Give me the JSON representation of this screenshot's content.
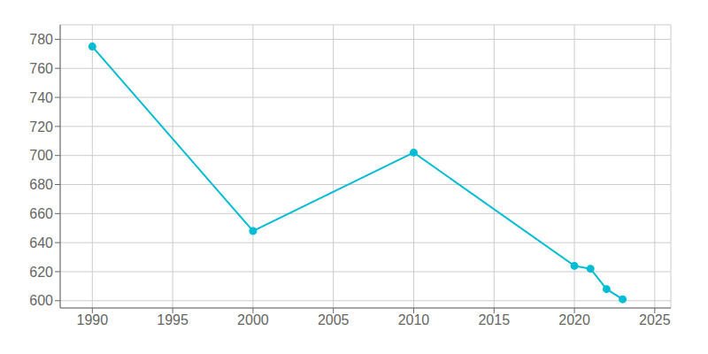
{
  "chart_data": {
    "type": "line",
    "x": [
      1990,
      2000,
      2010,
      2020,
      2021,
      2022,
      2023
    ],
    "values": [
      775,
      648,
      702,
      624,
      622,
      608,
      601
    ],
    "color": "#00BCD4",
    "marker": "circle",
    "xlim": [
      1988,
      2026
    ],
    "ylim": [
      595,
      790
    ],
    "xticks": [
      1990,
      1995,
      2000,
      2005,
      2010,
      2015,
      2020,
      2025
    ],
    "yticks": [
      600,
      620,
      640,
      660,
      680,
      700,
      720,
      740,
      760,
      780
    ],
    "grid": true
  }
}
